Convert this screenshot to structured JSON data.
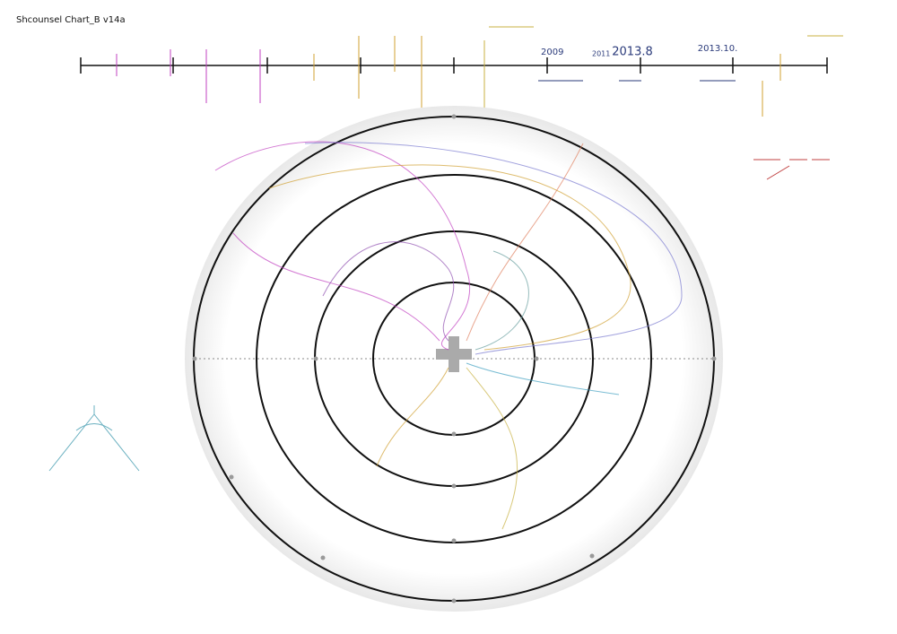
{
  "title": "Shcounsel Chart_B v14a",
  "timeline": {
    "labels": [
      "2009",
      "2011",
      "2013.8",
      "2013.10."
    ]
  }
}
